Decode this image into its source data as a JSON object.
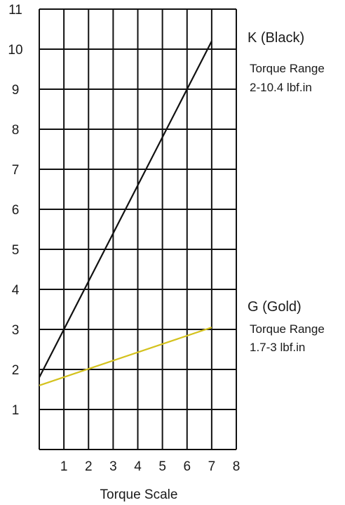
{
  "chart_data": {
    "type": "line",
    "title": "",
    "xlabel": "Torque Scale",
    "ylabel": "",
    "xlim": [
      0,
      8
    ],
    "ylim": [
      0,
      11
    ],
    "x_ticks": [
      "1",
      "2",
      "3",
      "4",
      "5",
      "6",
      "7",
      "8"
    ],
    "y_ticks": [
      "1",
      "2",
      "3",
      "4",
      "5",
      "6",
      "7",
      "8",
      "9",
      "10",
      "11"
    ],
    "grid": true,
    "series": [
      {
        "name": "K (Black)",
        "color": "#111111",
        "x": [
          0,
          7
        ],
        "y": [
          1.8,
          10.2
        ],
        "note_title": "Torque Range",
        "note_value": "2-10.4 lbf.in"
      },
      {
        "name": "G (Gold)",
        "color": "#d4c21e",
        "x": [
          0,
          7
        ],
        "y": [
          1.6,
          3.05
        ],
        "note_title": "Torque Range",
        "note_value": "1.7-3 lbf.in"
      }
    ]
  }
}
